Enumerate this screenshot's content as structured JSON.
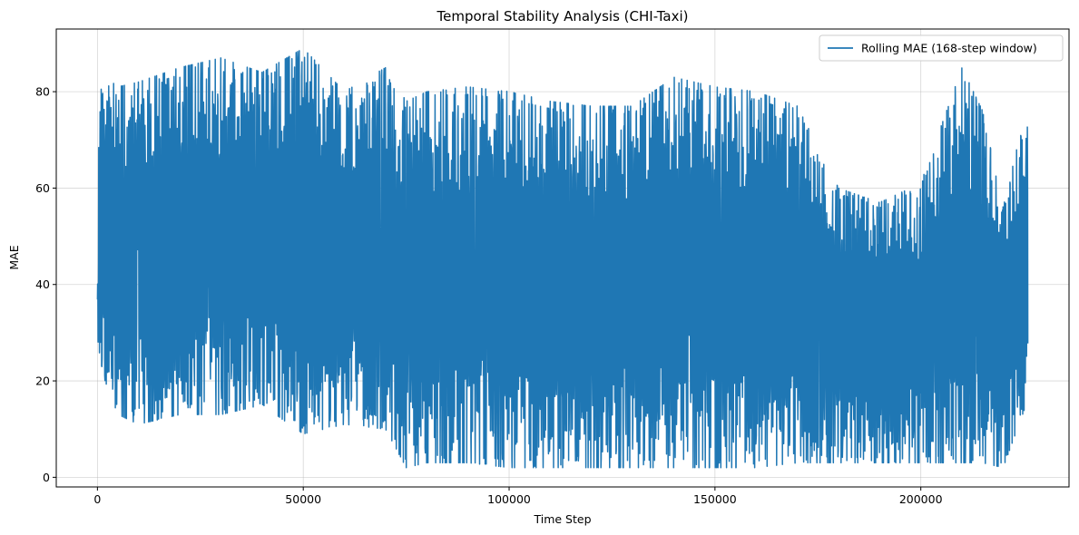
{
  "chart_data": {
    "type": "line",
    "title": "Temporal Stability Analysis (CHI-Taxi)",
    "xlabel": "Time Step",
    "ylabel": "MAE",
    "xlim": [
      -10000,
      236000
    ],
    "ylim": [
      -2,
      93
    ],
    "xticks": [
      0,
      50000,
      100000,
      150000,
      200000
    ],
    "xtick_labels": [
      "0",
      "50000",
      "100000",
      "150000",
      "200000"
    ],
    "yticks": [
      0,
      20,
      40,
      60,
      80
    ],
    "ytick_labels": [
      "0",
      "20",
      "40",
      "60",
      "80"
    ],
    "grid": true,
    "legend_position": "top-right",
    "series": [
      {
        "name": "Rolling MAE (168-step window)",
        "color": "#1f77b4",
        "x_range": [
          0,
          226000
        ],
        "envelope": [
          {
            "x": 0,
            "min": 23,
            "max": 40
          },
          {
            "x": 500,
            "min": 23,
            "max": 84
          },
          {
            "x": 5000,
            "min": 13,
            "max": 81
          },
          {
            "x": 10000,
            "min": 11,
            "max": 82
          },
          {
            "x": 20000,
            "min": 13,
            "max": 85
          },
          {
            "x": 30000,
            "min": 13,
            "max": 87
          },
          {
            "x": 40000,
            "min": 15,
            "max": 84
          },
          {
            "x": 50000,
            "min": 9,
            "max": 89
          },
          {
            "x": 60000,
            "min": 11,
            "max": 80
          },
          {
            "x": 70000,
            "min": 10,
            "max": 85
          },
          {
            "x": 75000,
            "min": 2,
            "max": 78
          },
          {
            "x": 80000,
            "min": 3,
            "max": 80
          },
          {
            "x": 90000,
            "min": 3,
            "max": 81
          },
          {
            "x": 100000,
            "min": 2,
            "max": 80
          },
          {
            "x": 110000,
            "min": 2,
            "max": 78
          },
          {
            "x": 120000,
            "min": 2,
            "max": 77
          },
          {
            "x": 130000,
            "min": 2,
            "max": 77
          },
          {
            "x": 140000,
            "min": 2,
            "max": 83
          },
          {
            "x": 150000,
            "min": 2,
            "max": 81
          },
          {
            "x": 160000,
            "min": 2,
            "max": 80
          },
          {
            "x": 170000,
            "min": 3,
            "max": 77
          },
          {
            "x": 180000,
            "min": 3,
            "max": 60
          },
          {
            "x": 190000,
            "min": 3,
            "max": 57
          },
          {
            "x": 200000,
            "min": 3,
            "max": 61
          },
          {
            "x": 210000,
            "min": 3,
            "max": 85
          },
          {
            "x": 215000,
            "min": 3,
            "max": 76
          },
          {
            "x": 220000,
            "min": 2,
            "max": 56
          },
          {
            "x": 226000,
            "min": 16,
            "max": 78
          }
        ]
      }
    ]
  }
}
